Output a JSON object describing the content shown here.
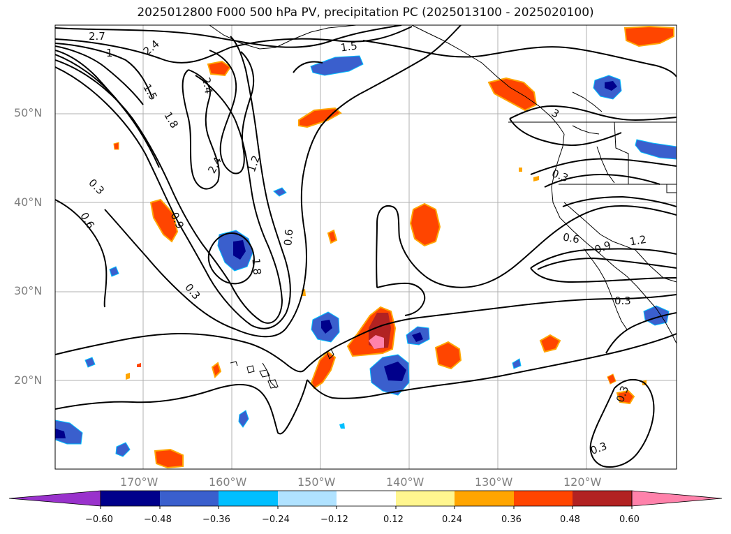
{
  "title": "2025012800 F000 500 hPa PV, precipitation PC (2025013100 - 2025020100)",
  "lat_labels": [
    "50°N",
    "40°N",
    "30°N",
    "20°N"
  ],
  "lon_labels": [
    "170°W",
    "160°W",
    "150°W",
    "140°W",
    "130°W",
    "120°W"
  ],
  "contour_labels": [
    "2.7",
    "2.4",
    "1.5",
    "1",
    "2.4",
    "1.5",
    "1.8",
    "2.4",
    "1.2",
    "0.3",
    "0.6",
    "0.9",
    "0.6",
    "1.8",
    "0.3",
    "0.3",
    "0.6",
    "0.9",
    "1.2",
    "0.3",
    "0.3",
    "0.3",
    "3"
  ],
  "colorbar": {
    "colors": [
      "#9932cc",
      "#00008b",
      "#3a5fcd",
      "#00bfff",
      "#b0e2ff",
      "#ffffff",
      "#fff68f",
      "#ffa500",
      "#ff4500",
      "#b22222",
      "#ff82ab"
    ],
    "tick_labels": [
      "−0.60",
      "−0.48",
      "−0.36",
      "−0.24",
      "−0.12",
      "0.12",
      "0.24",
      "0.36",
      "0.48",
      "0.60"
    ]
  }
}
